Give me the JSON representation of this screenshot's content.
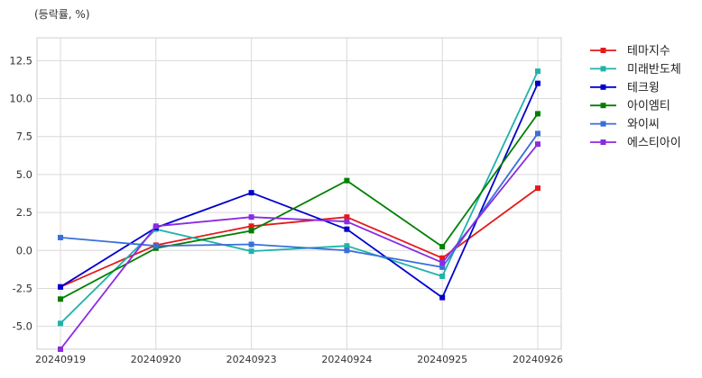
{
  "chart_data": {
    "type": "line",
    "unit_note": "(등락률, %)",
    "categories": [
      "20240919",
      "20240920",
      "20240923",
      "20240924",
      "20240925",
      "20240926"
    ],
    "ylim": [
      -6.5,
      14.0
    ],
    "yticks": [
      -5.0,
      -2.5,
      0.0,
      2.5,
      5.0,
      7.5,
      10.0,
      12.5
    ],
    "ytick_labels": [
      "-5.0",
      "-2.5",
      "0.0",
      "2.5",
      "5.0",
      "7.5",
      "10.0",
      "12.5"
    ],
    "grid": true,
    "legend_position": "outside-top-right",
    "series": [
      {
        "name": "테마지수",
        "color": "#e31a1c",
        "values": [
          -2.4,
          0.35,
          1.6,
          2.2,
          -0.5,
          4.1
        ]
      },
      {
        "name": "미래반도체",
        "color": "#20b2aa",
        "values": [
          -4.8,
          1.4,
          -0.05,
          0.3,
          -1.7,
          11.8
        ]
      },
      {
        "name": "테크윙",
        "color": "#0000cd",
        "values": [
          -2.4,
          1.5,
          3.8,
          1.4,
          -3.1,
          11.0
        ]
      },
      {
        "name": "아이엠티",
        "color": "#008000",
        "values": [
          -3.2,
          0.15,
          1.3,
          4.6,
          0.25,
          9.0
        ]
      },
      {
        "name": "와이씨",
        "color": "#3a6fd8",
        "values": [
          0.85,
          0.3,
          0.4,
          0.0,
          -1.1,
          7.7
        ]
      },
      {
        "name": "에스티아이",
        "color": "#8a2be2",
        "values": [
          -6.5,
          1.6,
          2.2,
          1.9,
          -0.8,
          7.0
        ]
      }
    ]
  }
}
